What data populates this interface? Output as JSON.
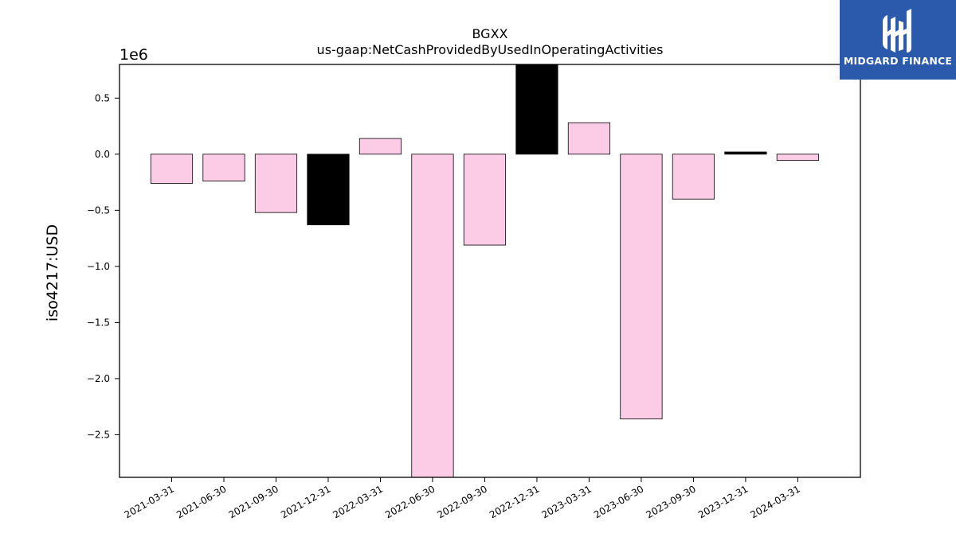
{
  "logo": {
    "brand": "MIDGARD FINANCE",
    "icon": "midgard-logo-icon",
    "background_color": "#2b5aad"
  },
  "chart_data": {
    "type": "bar",
    "title": "BGXX",
    "subtitle": "us-gaap:NetCashProvidedByUsedInOperatingActivities",
    "ylabel": "iso4217:USD",
    "xlabel": "",
    "scale_label": "1e6",
    "ylim": [
      -2.88,
      0.8
    ],
    "yticks": [
      0.5,
      0.0,
      -0.5,
      -1.0,
      -1.5,
      -2.0,
      -2.5
    ],
    "ytick_labels": [
      "0.5",
      "0.0",
      "−0.5",
      "−1.0",
      "−1.5",
      "−2.0",
      "−2.5"
    ],
    "categories": [
      "2021-03-31",
      "2021-06-30",
      "2021-09-30",
      "2021-12-31",
      "2022-03-31",
      "2022-06-30",
      "2022-09-30",
      "2022-12-31",
      "2023-03-31",
      "2023-06-30",
      "2023-09-30",
      "2023-12-31",
      "2024-03-31"
    ],
    "values": [
      -0.26,
      -0.24,
      -0.52,
      -0.63,
      0.14,
      -2.9,
      -0.81,
      0.82,
      0.28,
      -2.36,
      -0.4,
      0.02,
      -0.055
    ],
    "bar_colors": [
      "#fccbe5",
      "#fccbe5",
      "#fccbe5",
      "#000000",
      "#fccbe5",
      "#fccbe5",
      "#fccbe5",
      "#000000",
      "#fccbe5",
      "#fccbe5",
      "#fccbe5",
      "#000000",
      "#fccbe5"
    ],
    "grid": false
  }
}
